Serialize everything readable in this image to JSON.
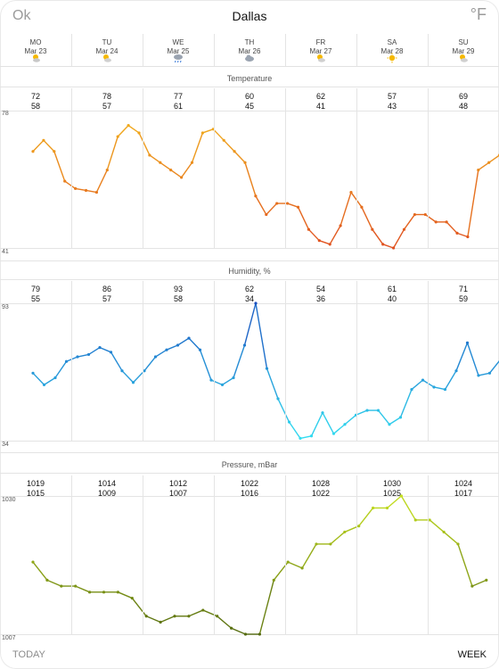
{
  "header": {
    "ok_label": "Ok",
    "city": "Dallas",
    "unit_label": "°F"
  },
  "days": [
    {
      "name": "MO",
      "date": "Mar 23",
      "icon": "sun-cloud-icon"
    },
    {
      "name": "TU",
      "date": "Mar 24",
      "icon": "sun-cloud-icon"
    },
    {
      "name": "WE",
      "date": "Mar 25",
      "icon": "rain-cloud-icon"
    },
    {
      "name": "TH",
      "date": "Mar 26",
      "icon": "cloud-icon"
    },
    {
      "name": "FR",
      "date": "Mar 27",
      "icon": "sun-cloud-icon"
    },
    {
      "name": "SA",
      "date": "Mar 28",
      "icon": "sun-icon"
    },
    {
      "name": "SU",
      "date": "Mar 29",
      "icon": "sun-cloud-icon"
    }
  ],
  "temperature": {
    "title": "Temperature",
    "axis_max": "78",
    "axis_min": "41",
    "highs": [
      "72",
      "78",
      "77",
      "60",
      "62",
      "57",
      "69"
    ],
    "lows": [
      "58",
      "57",
      "61",
      "45",
      "41",
      "43",
      "48"
    ]
  },
  "humidity": {
    "title": "Humidity, %",
    "axis_max": "93",
    "axis_min": "34",
    "highs": [
      "79",
      "86",
      "93",
      "62",
      "54",
      "61",
      "71"
    ],
    "lows": [
      "55",
      "57",
      "58",
      "34",
      "36",
      "40",
      "59"
    ]
  },
  "pressure": {
    "title": "Pressure, mBar",
    "axis_max": "1030",
    "axis_min": "1007",
    "highs": [
      "1019",
      "1014",
      "1012",
      "1022",
      "1028",
      "1030",
      "1024"
    ],
    "lows": [
      "1015",
      "1009",
      "1007",
      "1016",
      "1022",
      "1025",
      "1017"
    ]
  },
  "footer": {
    "today_label": "TODAY",
    "week_label": "WEEK"
  },
  "colors": {
    "temp_warm": "#f2b51d",
    "temp_hot": "#e05020",
    "humidity_dark": "#1a4fbf",
    "humidity_light": "#33e0f2",
    "pressure_dark": "#556b10",
    "pressure_light": "#c6e020"
  },
  "chart_data": [
    {
      "type": "line",
      "title": "Temperature",
      "ylim": [
        41,
        78
      ],
      "x_start": "Mar 23",
      "step_hours": 3,
      "values": [
        67,
        70,
        67,
        59,
        57,
        56.5,
        56,
        62,
        71,
        74,
        72,
        66,
        64,
        62,
        60,
        64,
        72,
        73,
        70,
        67,
        64,
        55,
        50,
        53,
        53,
        52,
        46,
        43,
        42,
        47,
        56,
        52,
        46,
        42,
        41,
        46,
        50,
        50,
        48,
        48,
        45,
        44,
        62,
        64,
        66
      ]
    },
    {
      "type": "line",
      "title": "Humidity, %",
      "ylim": [
        34,
        93
      ],
      "x_start": "Mar 23",
      "step_hours": 3,
      "values": [
        63,
        58,
        61,
        68,
        70,
        71,
        74,
        72,
        64,
        59,
        64,
        70,
        73,
        75,
        78,
        73,
        60,
        58,
        61,
        75,
        93,
        65,
        52,
        42,
        35,
        36,
        46,
        37,
        41,
        45,
        47,
        47,
        41,
        44,
        56,
        60,
        57,
        56,
        64,
        76,
        62,
        63,
        69
      ]
    },
    {
      "type": "line",
      "title": "Pressure, mBar",
      "ylim": [
        1007,
        1030
      ],
      "x_start": "Mar 23",
      "step_hours": 3,
      "values": [
        1019,
        1016,
        1015,
        1015,
        1014,
        1014,
        1014,
        1013,
        1010,
        1009,
        1010,
        1010,
        1011,
        1010,
        1008,
        1007,
        1007,
        1016,
        1019,
        1018,
        1022,
        1022,
        1024,
        1025,
        1028,
        1028,
        1030,
        1026,
        1026,
        1024,
        1022,
        1015,
        1016
      ]
    }
  ]
}
